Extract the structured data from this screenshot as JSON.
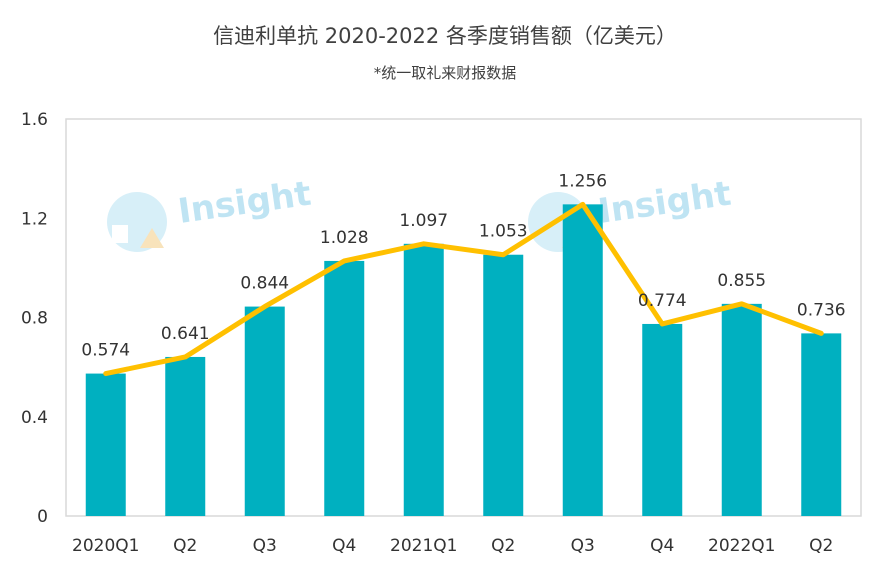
{
  "chart_data": {
    "type": "bar",
    "title": "信迪利单抗 2020-2022 各季度销售额（亿美元）",
    "subtitle": "*统一取礼来财报数据",
    "categories": [
      "2020Q1",
      "Q2",
      "Q3",
      "Q4",
      "2021Q1",
      "Q2",
      "Q3",
      "Q4",
      "2022Q1",
      "Q2"
    ],
    "values": [
      0.574,
      0.641,
      0.844,
      1.028,
      1.097,
      1.053,
      1.256,
      0.774,
      0.855,
      0.736
    ],
    "data_labels": [
      "0.574",
      "0.641",
      "0.844",
      "1.028",
      "1.097",
      "1.053",
      "1.256",
      "0.774",
      "0.855",
      "0.736"
    ],
    "overlay_line": true,
    "ylim": [
      0,
      1.6
    ],
    "yticks": [
      0,
      0.4,
      0.8,
      1.2,
      1.6
    ],
    "ytick_labels": [
      "0",
      "0.4",
      "0.8",
      "1.2",
      "1.6"
    ],
    "bar_color": "#00B0C0",
    "line_color": "#FFC000",
    "grid": false,
    "legend": "none",
    "watermark": "Insight"
  }
}
